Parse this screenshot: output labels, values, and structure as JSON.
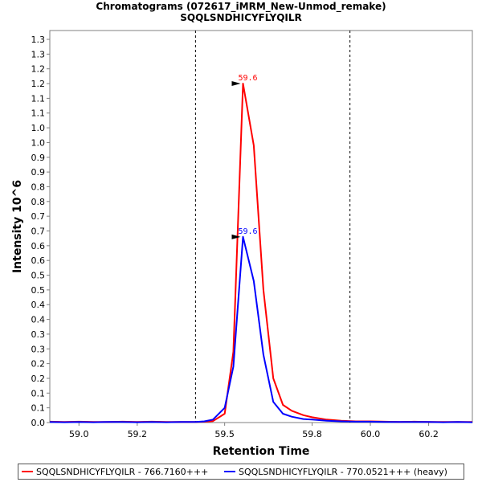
{
  "chart_data": {
    "type": "line",
    "title": "Chromatograms (072617_iMRM_New-Unmod_remake)",
    "subtitle": "SQQLSNDHICYFLYQILR",
    "xlabel": "Retention Time",
    "ylabel": "Intensity 10^6",
    "xlim": [
      58.9,
      60.35
    ],
    "ylim": [
      0.0,
      1.33
    ],
    "x_ticks": [
      "59.0",
      "59.2",
      "59.5",
      "59.8",
      "60.0",
      "60.2"
    ],
    "x_tick_values": [
      59.0,
      59.2,
      59.5,
      59.8,
      60.0,
      60.2
    ],
    "y_ticks": [
      "0.0",
      "0.1",
      "0.1",
      "0.2",
      "0.2",
      "0.3",
      "0.3",
      "0.4",
      "0.4",
      "0.5",
      "0.5",
      "0.6",
      "0.6",
      "0.7",
      "0.7",
      "0.8",
      "0.8",
      "0.9",
      "0.9",
      "1.0",
      "1.0",
      "1.1",
      "1.1",
      "1.2",
      "1.2",
      "1.3",
      "1.3"
    ],
    "y_tick_values": [
      0.0,
      0.05,
      0.1,
      0.15,
      0.2,
      0.25,
      0.3,
      0.35,
      0.4,
      0.45,
      0.5,
      0.55,
      0.6,
      0.65,
      0.7,
      0.75,
      0.8,
      0.85,
      0.9,
      0.95,
      1.0,
      1.05,
      1.1,
      1.15,
      1.2,
      1.25,
      1.3
    ],
    "boundaries": [
      59.4,
      59.93
    ],
    "grid": false,
    "legend_position": "bottom",
    "series": [
      {
        "name": "SQQLSNDHICYFLYQILR - 766.7160+++",
        "color": "#ff0000",
        "x": [
          58.9,
          58.95,
          59.0,
          59.05,
          59.1,
          59.15,
          59.2,
          59.25,
          59.3,
          59.35,
          59.4,
          59.43,
          59.46,
          59.5,
          59.53,
          59.563,
          59.6,
          59.633,
          59.667,
          59.7,
          59.73,
          59.77,
          59.8,
          59.85,
          59.9,
          59.95,
          60.0,
          60.05,
          60.1,
          60.15,
          60.2,
          60.25,
          60.3,
          60.35
        ],
        "y": [
          0.003,
          0.002,
          0.003,
          0.002,
          0.002,
          0.003,
          0.002,
          0.003,
          0.002,
          0.002,
          0.002,
          0.003,
          0.005,
          0.03,
          0.24,
          1.15,
          0.94,
          0.45,
          0.15,
          0.06,
          0.04,
          0.025,
          0.018,
          0.01,
          0.006,
          0.004,
          0.004,
          0.003,
          0.002,
          0.003,
          0.002,
          0.002,
          0.002,
          0.002
        ],
        "peak_label": "59.6",
        "peak_x": 59.563,
        "peak_y": 1.15
      },
      {
        "name": "SQQLSNDHICYFLYQILR - 770.0521+++ (heavy)",
        "color": "#0000ff",
        "x": [
          58.9,
          58.95,
          59.0,
          59.05,
          59.1,
          59.15,
          59.2,
          59.25,
          59.3,
          59.35,
          59.4,
          59.43,
          59.46,
          59.5,
          59.53,
          59.563,
          59.6,
          59.633,
          59.667,
          59.7,
          59.73,
          59.77,
          59.8,
          59.85,
          59.9,
          59.95,
          60.0,
          60.05,
          60.1,
          60.15,
          60.2,
          60.25,
          60.3,
          60.35
        ],
        "y": [
          0.002,
          0.001,
          0.002,
          0.001,
          0.002,
          0.002,
          0.001,
          0.002,
          0.001,
          0.002,
          0.002,
          0.004,
          0.01,
          0.05,
          0.19,
          0.63,
          0.48,
          0.23,
          0.07,
          0.03,
          0.02,
          0.012,
          0.01,
          0.006,
          0.004,
          0.003,
          0.003,
          0.002,
          0.002,
          0.002,
          0.002,
          0.001,
          0.002,
          0.001
        ],
        "peak_label": "59.6",
        "peak_x": 59.563,
        "peak_y": 0.63
      }
    ]
  }
}
